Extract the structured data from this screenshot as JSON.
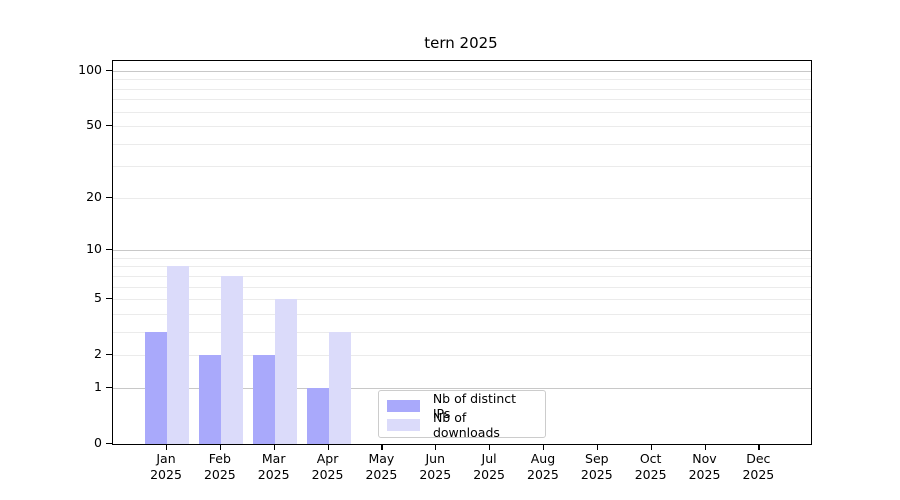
{
  "chart_data": {
    "type": "bar",
    "title": "tern 2025",
    "categories": [
      "Jan",
      "Feb",
      "Mar",
      "Apr",
      "May",
      "Jun",
      "Jul",
      "Aug",
      "Sep",
      "Oct",
      "Nov",
      "Dec"
    ],
    "x_tick_year": "2025",
    "series": [
      {
        "name": "Nb of distinct IPs",
        "color": "#a9a9fb",
        "values": [
          3,
          2,
          2,
          1,
          0,
          0,
          0,
          0,
          0,
          0,
          0,
          0
        ]
      },
      {
        "name": "Nb of downloads",
        "color": "#dbdbfa",
        "values": [
          8,
          7,
          5,
          3,
          0,
          0,
          0,
          0,
          0,
          0,
          0,
          0
        ]
      }
    ],
    "y_axis": {
      "scale": "log1p",
      "ylim": [
        0,
        100
      ],
      "tick_values": [
        0,
        1,
        2,
        5,
        10,
        20,
        50,
        100
      ],
      "major_grid_values": [
        1,
        10,
        100
      ],
      "minor_grid_values": [
        2,
        3,
        4,
        5,
        6,
        7,
        8,
        9,
        20,
        30,
        40,
        50,
        60,
        70,
        80,
        90
      ]
    },
    "legend_position": "bottom-center",
    "grid": true
  },
  "colors": {
    "distinct_ips_bar": "#a9a9fb",
    "downloads_bar": "#dbdbfa",
    "major_grid": "#c8c8c8",
    "minor_grid": "#ebebeb",
    "axis_line": "#000000",
    "legend_border": "#cccccc",
    "background": "#ffffff"
  }
}
